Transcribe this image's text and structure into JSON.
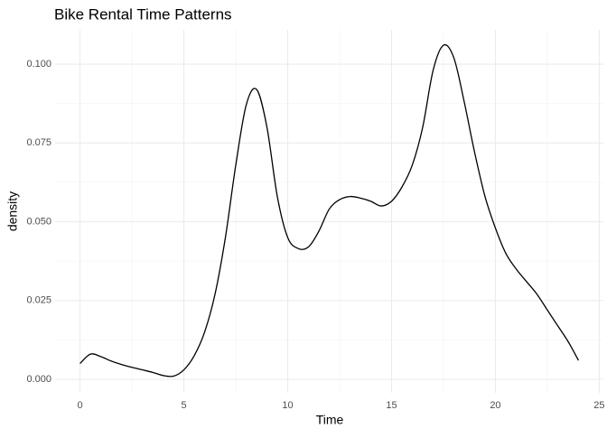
{
  "chart_data": {
    "type": "line",
    "title": "Bike Rental Time Patterns",
    "x_label": "Time",
    "y_label": "density",
    "x": [
      0,
      0.5,
      1,
      1.5,
      2,
      2.5,
      3,
      3.5,
      4,
      4.5,
      5,
      5.5,
      6,
      6.5,
      7,
      7.5,
      8,
      8.5,
      9,
      9.5,
      10,
      10.5,
      11,
      11.5,
      12,
      12.5,
      13,
      13.5,
      14,
      14.5,
      15,
      15.5,
      16,
      16.5,
      17,
      17.5,
      18,
      18.5,
      19,
      19.5,
      20,
      20.5,
      21,
      21.5,
      22,
      22.5,
      23,
      23.5,
      24
    ],
    "series": [
      {
        "name": "density",
        "color": "#000000",
        "values": [
          0.005,
          0.008,
          0.0072,
          0.0058,
          0.0047,
          0.0038,
          0.003,
          0.0022,
          0.0012,
          0.001,
          0.003,
          0.0075,
          0.015,
          0.027,
          0.045,
          0.068,
          0.087,
          0.092,
          0.08,
          0.058,
          0.045,
          0.0415,
          0.042,
          0.047,
          0.054,
          0.057,
          0.058,
          0.0575,
          0.0565,
          0.055,
          0.0565,
          0.061,
          0.068,
          0.08,
          0.098,
          0.106,
          0.102,
          0.088,
          0.072,
          0.058,
          0.048,
          0.04,
          0.035,
          0.031,
          0.027,
          0.022,
          0.017,
          0.012,
          0.006
        ]
      }
    ],
    "xlim": [
      -1.2,
      25.2
    ],
    "ylim": [
      -0.0043,
      0.1109
    ],
    "xticks": [
      0,
      5,
      10,
      15,
      20,
      25
    ],
    "yticks": [
      {
        "value": 0,
        "label": "0.000"
      },
      {
        "value": 0.025,
        "label": "0.025"
      },
      {
        "value": 0.05,
        "label": "0.050"
      },
      {
        "value": 0.075,
        "label": "0.075"
      },
      {
        "value": 0.1,
        "label": "0.100"
      }
    ],
    "x_minor_ticks": [
      2.5,
      7.5,
      12.5,
      17.5,
      22.5
    ],
    "y_minor_ticks": [
      0.0125,
      0.0375,
      0.0625,
      0.0875
    ],
    "grid": true
  }
}
